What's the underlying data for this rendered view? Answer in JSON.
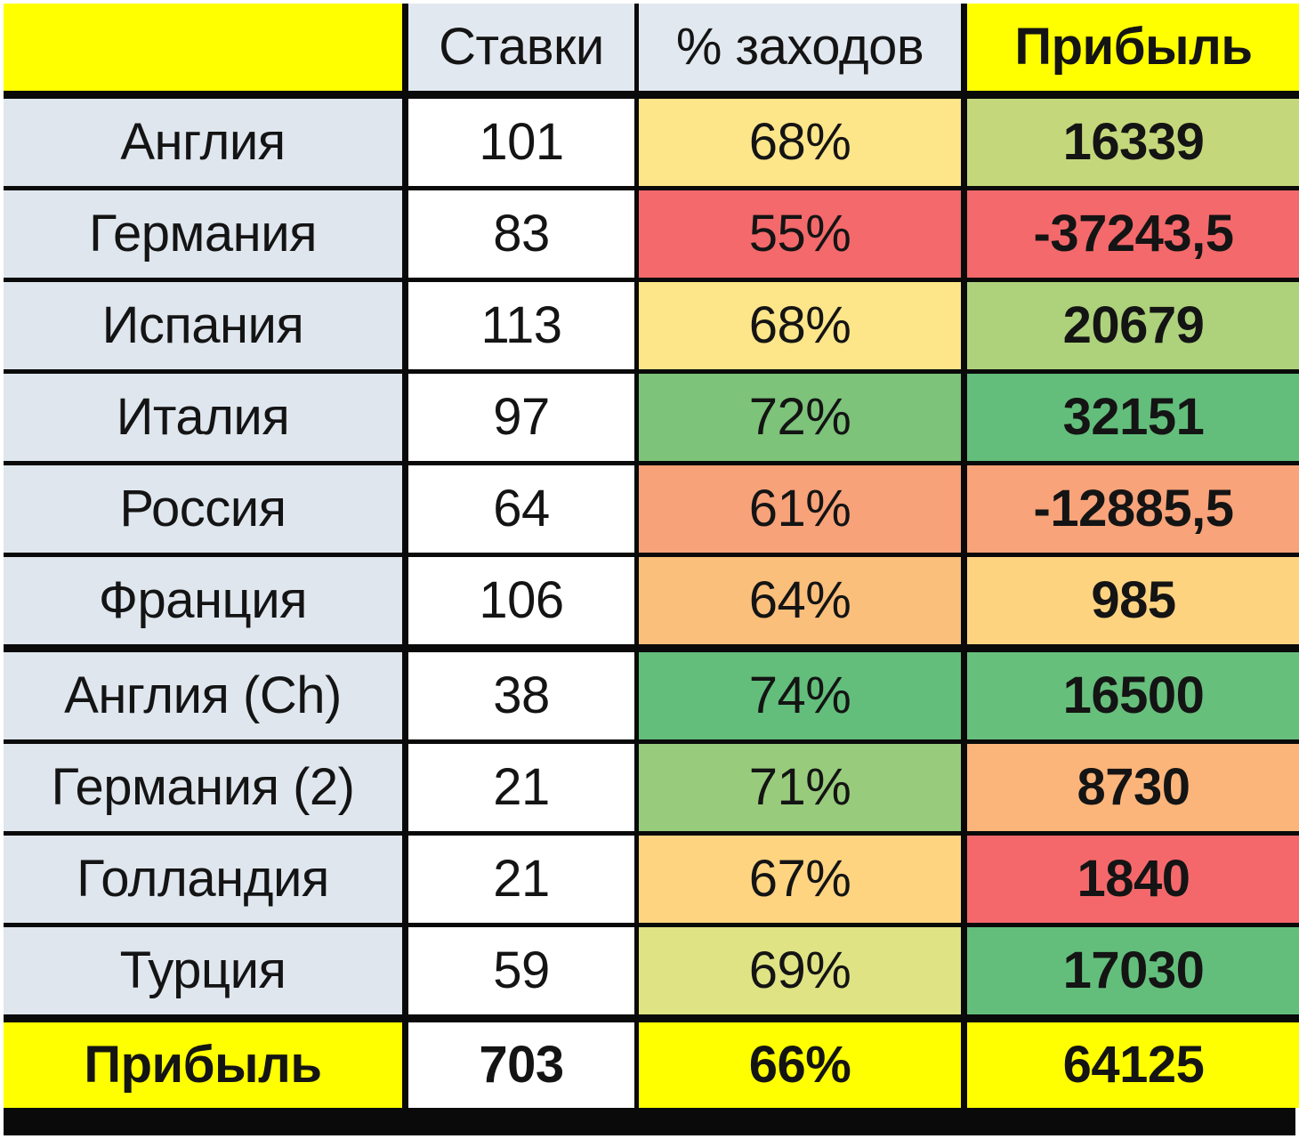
{
  "table": {
    "headers": {
      "corner": "",
      "bets": "Ставки",
      "hit_rate": "% заходов",
      "profit": "Прибыль"
    },
    "rows": [
      {
        "country": "Англия",
        "bets": "101",
        "hit_rate": "68%",
        "profit": "16339",
        "hit_rate_color": "#fde589",
        "profit_color": "#c4d87b"
      },
      {
        "country": "Германия",
        "bets": "83",
        "hit_rate": "55%",
        "profit": "-37243,5",
        "hit_rate_color": "#f4696b",
        "profit_color": "#f4696b"
      },
      {
        "country": "Испания",
        "bets": "113",
        "hit_rate": "68%",
        "profit": "20679",
        "hit_rate_color": "#fde589",
        "profit_color": "#aed27b"
      },
      {
        "country": "Италия",
        "bets": "97",
        "hit_rate": "72%",
        "profit": "32151",
        "hit_rate_color": "#7dc37a",
        "profit_color": "#63be7b"
      },
      {
        "country": "Россия",
        "bets": "64",
        "hit_rate": "61%",
        "profit": "-12885,5",
        "hit_rate_color": "#f8a27a",
        "profit_color": "#f9a37a"
      },
      {
        "country": "Франция",
        "bets": "106",
        "hit_rate": "64%",
        "profit": "985",
        "hit_rate_color": "#fbbf7c",
        "profit_color": "#fdd380"
      },
      {
        "country": "Англия (Ch)",
        "bets": "38",
        "hit_rate": "74%",
        "profit": "16500",
        "hit_rate_color": "#63be7b",
        "profit_color": "#67bf7c"
      },
      {
        "country": "Германия (2)",
        "bets": "21",
        "hit_rate": "71%",
        "profit": "8730",
        "hit_rate_color": "#98cc7c",
        "profit_color": "#fbb57a"
      },
      {
        "country": "Голландия",
        "bets": "21",
        "hit_rate": "67%",
        "profit": "1840",
        "hit_rate_color": "#fed481",
        "profit_color": "#f4686b"
      },
      {
        "country": "Турция",
        "bets": "59",
        "hit_rate": "69%",
        "profit": "17030",
        "hit_rate_color": "#dfe384",
        "profit_color": "#63be7b"
      }
    ],
    "total": {
      "label": "Прибыль",
      "bets": "703",
      "hit_rate": "66%",
      "profit": "64125"
    }
  },
  "colors": {
    "highlight_yellow": "#ffff00",
    "label_column_bg": "#dfe6ee",
    "border": "#0a0a0a"
  }
}
